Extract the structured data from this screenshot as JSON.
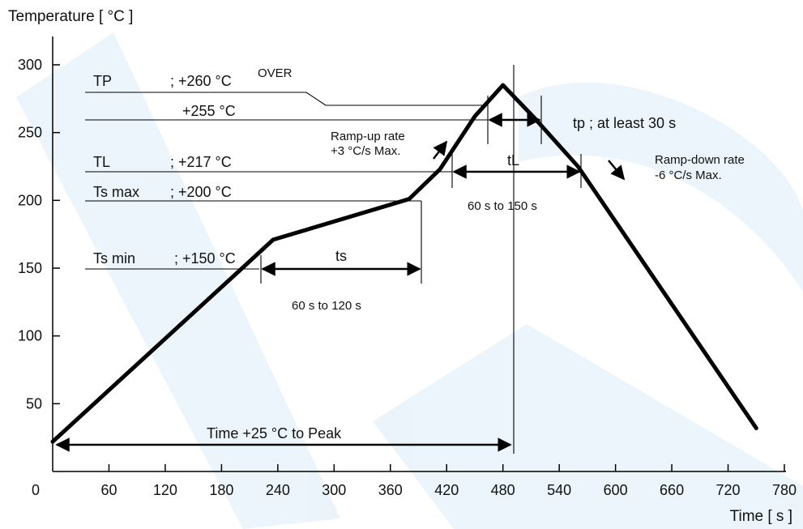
{
  "chart_data": {
    "type": "line",
    "title": "",
    "ylabel": "Temperature [ °C ]",
    "xlabel": "Time [ s ]",
    "xlim": [
      0,
      780
    ],
    "ylim": [
      0,
      300
    ],
    "x_ticks": [
      0,
      60,
      120,
      180,
      240,
      300,
      360,
      420,
      480,
      540,
      600,
      660,
      720,
      780
    ],
    "y_ticks": [
      50,
      100,
      150,
      200,
      250,
      300
    ],
    "grid": false,
    "series": [
      {
        "name": "",
        "x": [
          0,
          202,
          235,
          380,
          413,
          450,
          480,
          512,
          560,
          750
        ],
        "y": [
          22,
          150,
          171,
          201,
          223,
          262,
          285,
          262,
          225,
          32
        ]
      }
    ],
    "levels": [
      {
        "label": "TP",
        "value_text": "; +260 °C",
        "extra": "OVER"
      },
      {
        "label": "",
        "value_text": "+255 °C"
      },
      {
        "label": "TL",
        "value_text": "; +217 °C"
      },
      {
        "label": "Ts max",
        "value_text": "; +200 °C"
      },
      {
        "label": "Ts min",
        "value_text": "; +150 °C"
      }
    ],
    "annotations": {
      "tp_text": "tp ; at least 30 s",
      "tL_text": "tL",
      "tL_range": "60 s  to  150 s",
      "ts_text": "ts",
      "ts_range": "60 s  to  120 s",
      "time_to_peak": "Time +25 °C to Peak",
      "ramp_up_line1": "Ramp-up rate",
      "ramp_up_line2": "+3 °C/s Max.",
      "ramp_down_line1": "Ramp-down rate",
      "ramp_down_line2": "-6 °C/s Max."
    }
  }
}
